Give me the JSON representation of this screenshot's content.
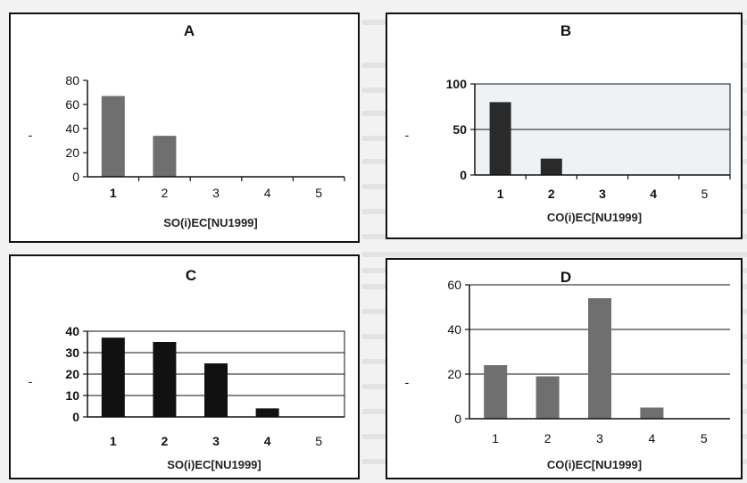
{
  "chart_data": [
    {
      "type": "bar",
      "panel": "A",
      "ylabel": "-",
      "xlabel": "SO(i)EC[NU1999]",
      "categories": [
        "1",
        "2",
        "3",
        "4",
        "5"
      ],
      "yticks": [
        "0",
        "20",
        "40",
        "60",
        "80"
      ],
      "values": [
        67,
        34,
        0,
        0,
        0
      ],
      "ylim": [
        0,
        80
      ],
      "grid": false,
      "bar_color": "#6f6f6f"
    },
    {
      "type": "bar",
      "panel": "B",
      "ylabel": "-",
      "xlabel": "CO(i)EC[NU1999]",
      "categories": [
        "1",
        "2",
        "3",
        "4",
        "5"
      ],
      "yticks": [
        "0",
        "50",
        "100"
      ],
      "values": [
        80,
        18,
        0,
        0,
        0
      ],
      "ylim": [
        0,
        100
      ],
      "grid": true,
      "bar_color": "#2a2a2a"
    },
    {
      "type": "bar",
      "panel": "C",
      "ylabel": "-",
      "xlabel": "SO(i)EC[NU1999]",
      "categories": [
        "1",
        "2",
        "3",
        "4",
        "5"
      ],
      "yticks": [
        "0",
        "10",
        "20",
        "30",
        "40"
      ],
      "values": [
        37,
        35,
        25,
        4,
        0
      ],
      "ylim": [
        0,
        40
      ],
      "grid": true,
      "bar_color": "#111111"
    },
    {
      "type": "bar",
      "panel": "D",
      "ylabel": "-",
      "xlabel": "CO(i)EC[NU1999]",
      "categories": [
        "1",
        "2",
        "3",
        "4",
        "5"
      ],
      "yticks": [
        "0",
        "20",
        "40",
        "60"
      ],
      "values": [
        24,
        19,
        54,
        5,
        0
      ],
      "ylim": [
        0,
        60
      ],
      "grid": true,
      "bar_color": "#6f6f6f"
    }
  ]
}
